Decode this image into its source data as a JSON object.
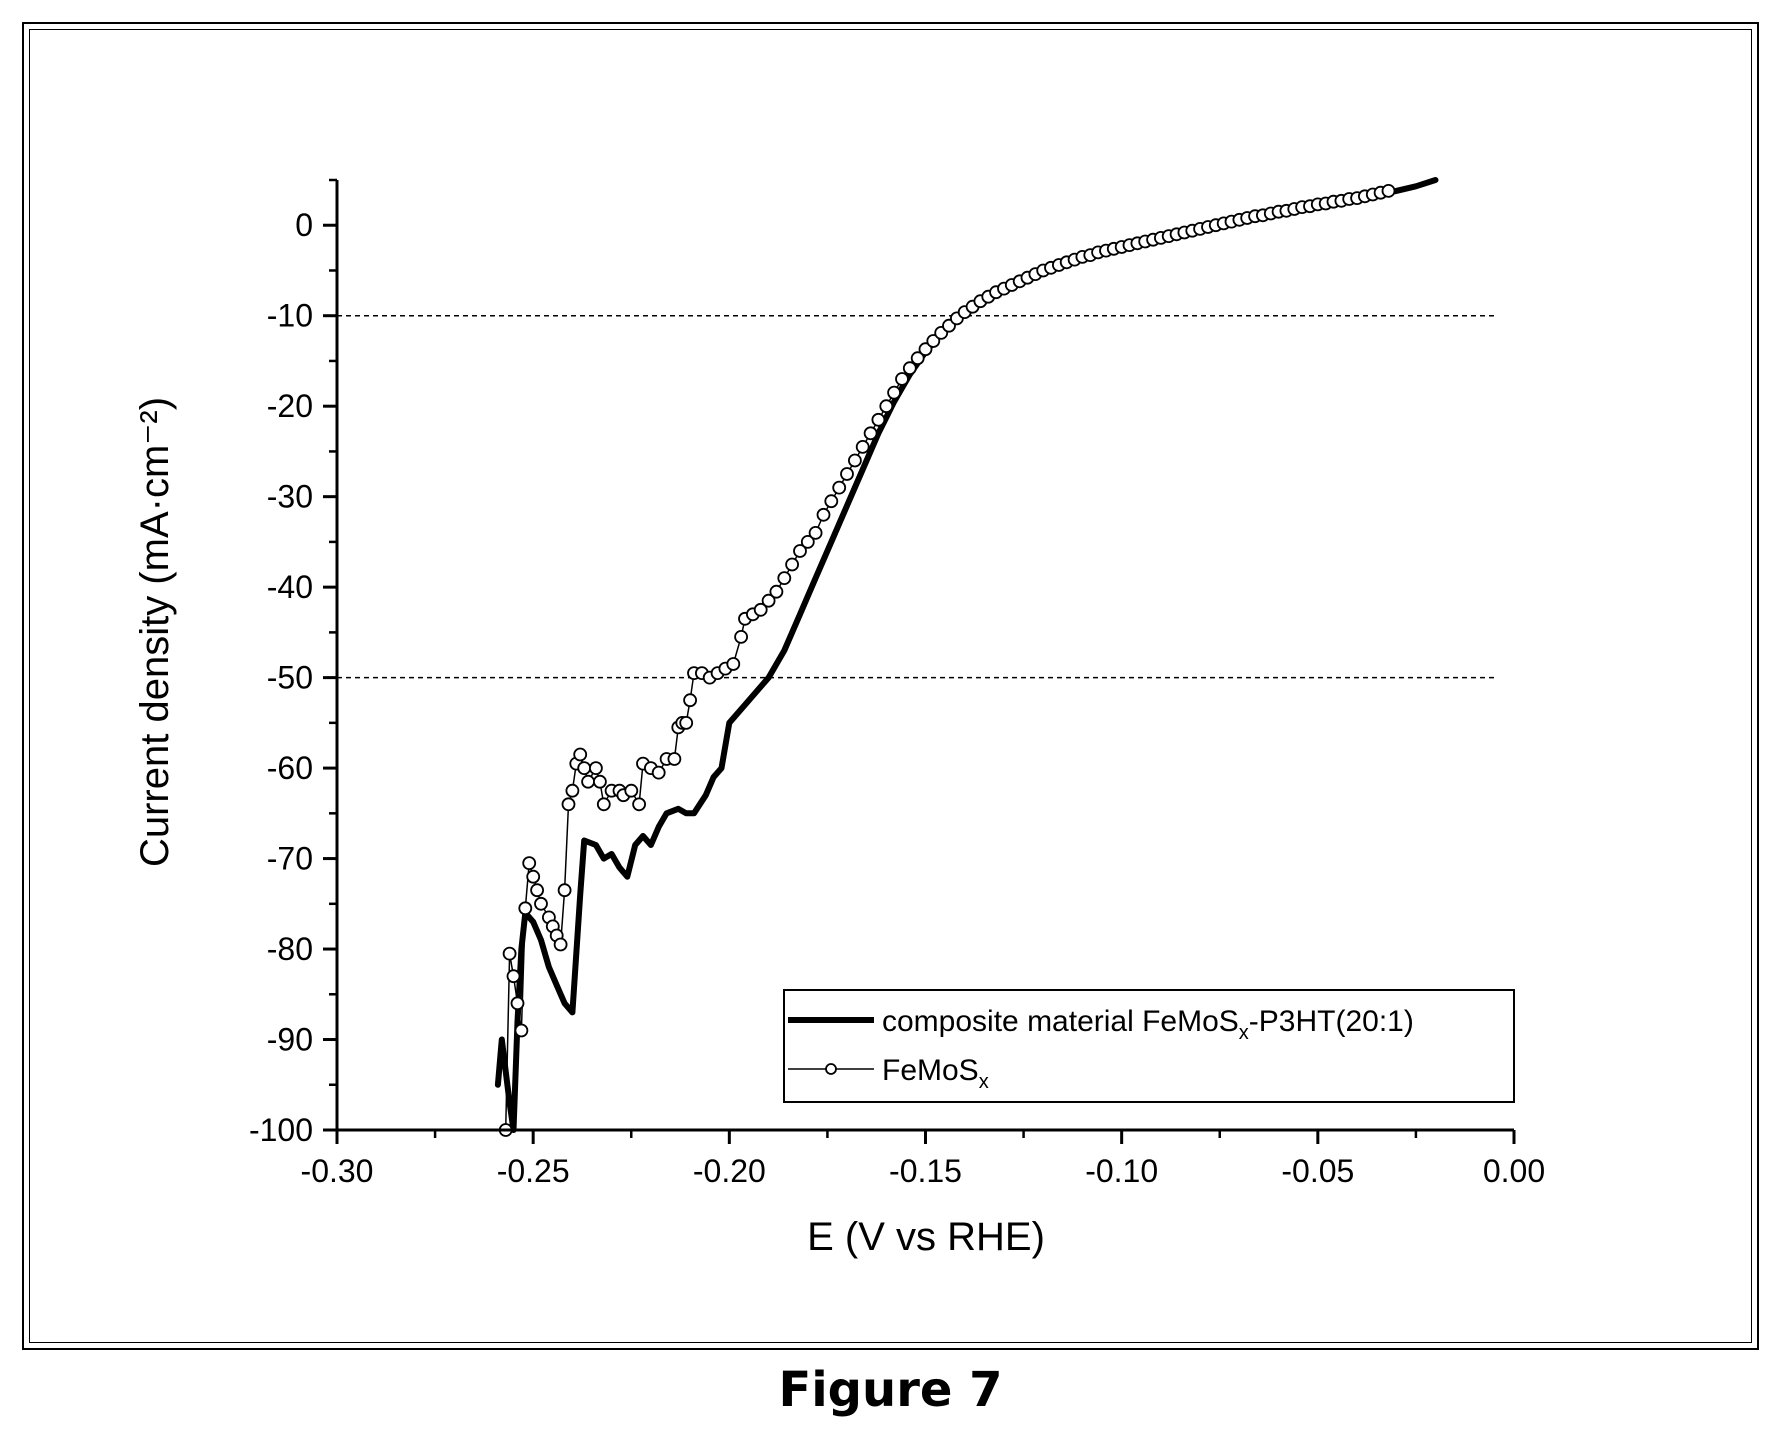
{
  "caption": "Figure 7",
  "chart_data": {
    "type": "line",
    "xlabel": "E (V vs RHE)",
    "ylabel": "Current density (mA·cm⁻²)",
    "xlim": [
      -0.3,
      0.0
    ],
    "ylim": [
      -100,
      5
    ],
    "x_ticks": [
      -0.3,
      -0.25,
      -0.2,
      -0.15,
      -0.1,
      -0.05,
      0.0
    ],
    "x_tick_labels": [
      "-0.30",
      "-0.25",
      "-0.20",
      "-0.15",
      "-0.10",
      "-0.05",
      "0.00"
    ],
    "y_ticks": [
      0,
      -10,
      -20,
      -30,
      -40,
      -50,
      -60,
      -70,
      -80,
      -90,
      -100
    ],
    "y_tick_labels": [
      "0",
      "-10",
      "-20",
      "-30",
      "-40",
      "-50",
      "-60",
      "-70",
      "-80",
      "-90",
      "-100"
    ],
    "reference_lines": [
      -10,
      -50
    ],
    "legend_position": "bottom-right",
    "series": [
      {
        "name": "composite material FeMoSx-P3HT(20:1)",
        "name_main": "composite material FeMoS",
        "name_sub": "x",
        "name_tail": "-P3HT(20:1)",
        "style": "thick-line",
        "color": "#000000",
        "points": [
          [
            -0.259,
            -95
          ],
          [
            -0.258,
            -90
          ],
          [
            -0.256,
            -97
          ],
          [
            -0.255,
            -100
          ],
          [
            -0.254,
            -88
          ],
          [
            -0.253,
            -80
          ],
          [
            -0.252,
            -76
          ],
          [
            -0.25,
            -77
          ],
          [
            -0.248,
            -79
          ],
          [
            -0.246,
            -82
          ],
          [
            -0.244,
            -84
          ],
          [
            -0.242,
            -86
          ],
          [
            -0.24,
            -87
          ],
          [
            -0.238,
            -74
          ],
          [
            -0.237,
            -68
          ],
          [
            -0.234,
            -68.5
          ],
          [
            -0.232,
            -70
          ],
          [
            -0.23,
            -69.5
          ],
          [
            -0.228,
            -71
          ],
          [
            -0.226,
            -72
          ],
          [
            -0.224,
            -68.5
          ],
          [
            -0.222,
            -67.5
          ],
          [
            -0.22,
            -68.5
          ],
          [
            -0.218,
            -66.5
          ],
          [
            -0.216,
            -65
          ],
          [
            -0.213,
            -64.5
          ],
          [
            -0.211,
            -65
          ],
          [
            -0.209,
            -65
          ],
          [
            -0.206,
            -63
          ],
          [
            -0.204,
            -61
          ],
          [
            -0.202,
            -60
          ],
          [
            -0.2,
            -55
          ],
          [
            -0.196,
            -53
          ],
          [
            -0.19,
            -50
          ],
          [
            -0.186,
            -47
          ],
          [
            -0.182,
            -43
          ],
          [
            -0.178,
            -39
          ],
          [
            -0.174,
            -35
          ],
          [
            -0.17,
            -31
          ],
          [
            -0.166,
            -27
          ],
          [
            -0.162,
            -23
          ],
          [
            -0.158,
            -19.5
          ],
          [
            -0.154,
            -16.5
          ],
          [
            -0.15,
            -14
          ],
          [
            -0.146,
            -12
          ],
          [
            -0.142,
            -10.3
          ],
          [
            -0.138,
            -9
          ],
          [
            -0.134,
            -8
          ],
          [
            -0.13,
            -7
          ],
          [
            -0.125,
            -6
          ],
          [
            -0.12,
            -5
          ],
          [
            -0.115,
            -4.2
          ],
          [
            -0.11,
            -3.5
          ],
          [
            -0.105,
            -3
          ],
          [
            -0.1,
            -2.5
          ],
          [
            -0.095,
            -2
          ],
          [
            -0.09,
            -1.5
          ],
          [
            -0.085,
            -1
          ],
          [
            -0.08,
            -0.5
          ],
          [
            -0.075,
            0
          ],
          [
            -0.07,
            0.4
          ],
          [
            -0.065,
            0.8
          ],
          [
            -0.06,
            1.2
          ],
          [
            -0.055,
            1.6
          ],
          [
            -0.05,
            2.0
          ],
          [
            -0.045,
            2.4
          ],
          [
            -0.04,
            2.8
          ],
          [
            -0.035,
            3.3
          ],
          [
            -0.03,
            3.8
          ],
          [
            -0.025,
            4.3
          ],
          [
            -0.02,
            5
          ]
        ]
      },
      {
        "name": "FeMoSx",
        "name_main": "FeMoS",
        "name_sub": "x",
        "name_tail": "",
        "style": "line-open-circles",
        "color": "#000000",
        "points": [
          [
            -0.257,
            -100
          ],
          [
            -0.256,
            -80.5
          ],
          [
            -0.255,
            -83
          ],
          [
            -0.254,
            -86
          ],
          [
            -0.253,
            -89
          ],
          [
            -0.252,
            -75.5
          ],
          [
            -0.251,
            -70.5
          ],
          [
            -0.25,
            -72
          ],
          [
            -0.249,
            -73.5
          ],
          [
            -0.248,
            -75
          ],
          [
            -0.246,
            -76.5
          ],
          [
            -0.245,
            -77.5
          ],
          [
            -0.244,
            -78.5
          ],
          [
            -0.243,
            -79.5
          ],
          [
            -0.242,
            -73.5
          ],
          [
            -0.241,
            -64
          ],
          [
            -0.24,
            -62.5
          ],
          [
            -0.239,
            -59.5
          ],
          [
            -0.238,
            -58.5
          ],
          [
            -0.237,
            -60
          ],
          [
            -0.236,
            -61.5
          ],
          [
            -0.234,
            -60
          ],
          [
            -0.233,
            -61.5
          ],
          [
            -0.232,
            -64
          ],
          [
            -0.23,
            -62.5
          ],
          [
            -0.228,
            -62.5
          ],
          [
            -0.227,
            -63
          ],
          [
            -0.225,
            -62.5
          ],
          [
            -0.223,
            -64
          ],
          [
            -0.222,
            -59.5
          ],
          [
            -0.22,
            -60
          ],
          [
            -0.218,
            -60.5
          ],
          [
            -0.216,
            -59
          ],
          [
            -0.214,
            -59
          ],
          [
            -0.213,
            -55.5
          ],
          [
            -0.212,
            -55
          ],
          [
            -0.211,
            -55
          ],
          [
            -0.21,
            -52.5
          ],
          [
            -0.209,
            -49.5
          ],
          [
            -0.207,
            -49.5
          ],
          [
            -0.205,
            -50
          ],
          [
            -0.203,
            -49.5
          ],
          [
            -0.201,
            -49
          ],
          [
            -0.199,
            -48.5
          ],
          [
            -0.197,
            -45.5
          ],
          [
            -0.196,
            -43.5
          ],
          [
            -0.194,
            -43
          ],
          [
            -0.192,
            -42.5
          ],
          [
            -0.19,
            -41.5
          ],
          [
            -0.188,
            -40.5
          ],
          [
            -0.186,
            -39
          ],
          [
            -0.184,
            -37.5
          ],
          [
            -0.182,
            -36
          ],
          [
            -0.18,
            -35
          ],
          [
            -0.178,
            -34
          ],
          [
            -0.176,
            -32
          ],
          [
            -0.174,
            -30.5
          ],
          [
            -0.172,
            -29
          ],
          [
            -0.17,
            -27.5
          ],
          [
            -0.168,
            -26
          ],
          [
            -0.166,
            -24.5
          ],
          [
            -0.164,
            -23
          ],
          [
            -0.162,
            -21.5
          ],
          [
            -0.16,
            -20
          ],
          [
            -0.158,
            -18.5
          ],
          [
            -0.156,
            -17
          ],
          [
            -0.154,
            -15.8
          ],
          [
            -0.152,
            -14.7
          ],
          [
            -0.15,
            -13.7
          ],
          [
            -0.148,
            -12.8
          ],
          [
            -0.146,
            -11.9
          ],
          [
            -0.144,
            -11.1
          ],
          [
            -0.142,
            -10.3
          ],
          [
            -0.14,
            -9.6
          ],
          [
            -0.138,
            -9.0
          ],
          [
            -0.136,
            -8.4
          ],
          [
            -0.134,
            -7.9
          ],
          [
            -0.132,
            -7.4
          ],
          [
            -0.13,
            -7.0
          ],
          [
            -0.128,
            -6.6
          ],
          [
            -0.126,
            -6.2
          ],
          [
            -0.124,
            -5.8
          ],
          [
            -0.122,
            -5.4
          ],
          [
            -0.12,
            -5.0
          ],
          [
            -0.118,
            -4.7
          ],
          [
            -0.116,
            -4.4
          ],
          [
            -0.114,
            -4.1
          ],
          [
            -0.112,
            -3.8
          ],
          [
            -0.11,
            -3.5
          ],
          [
            -0.108,
            -3.3
          ],
          [
            -0.106,
            -3.0
          ],
          [
            -0.104,
            -2.8
          ],
          [
            -0.102,
            -2.6
          ],
          [
            -0.1,
            -2.4
          ],
          [
            -0.098,
            -2.2
          ],
          [
            -0.096,
            -2.0
          ],
          [
            -0.094,
            -1.8
          ],
          [
            -0.092,
            -1.6
          ],
          [
            -0.09,
            -1.4
          ],
          [
            -0.088,
            -1.2
          ],
          [
            -0.086,
            -1.0
          ],
          [
            -0.084,
            -0.8
          ],
          [
            -0.082,
            -0.6
          ],
          [
            -0.08,
            -0.4
          ],
          [
            -0.078,
            -0.2
          ],
          [
            -0.076,
            0.0
          ],
          [
            -0.074,
            0.2
          ],
          [
            -0.072,
            0.4
          ],
          [
            -0.07,
            0.6
          ],
          [
            -0.068,
            0.8
          ],
          [
            -0.066,
            1.0
          ],
          [
            -0.064,
            1.1
          ],
          [
            -0.062,
            1.3
          ],
          [
            -0.06,
            1.5
          ],
          [
            -0.058,
            1.6
          ],
          [
            -0.056,
            1.8
          ],
          [
            -0.054,
            2.0
          ],
          [
            -0.052,
            2.1
          ],
          [
            -0.05,
            2.3
          ],
          [
            -0.048,
            2.4
          ],
          [
            -0.046,
            2.6
          ],
          [
            -0.044,
            2.7
          ],
          [
            -0.042,
            2.9
          ],
          [
            -0.04,
            3.0
          ],
          [
            -0.038,
            3.2
          ],
          [
            -0.036,
            3.4
          ],
          [
            -0.034,
            3.6
          ],
          [
            -0.032,
            3.8
          ]
        ]
      }
    ]
  }
}
